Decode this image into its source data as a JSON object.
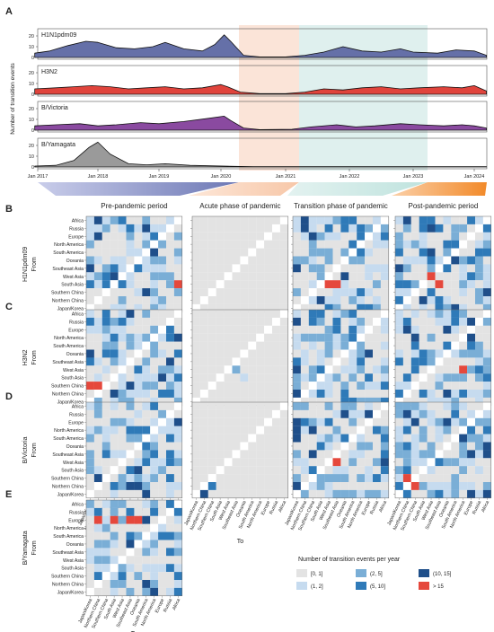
{
  "panel_letters": {
    "a": "A",
    "b": "B",
    "c": "C",
    "d": "D",
    "e": "E"
  },
  "panelA": {
    "ylabel": "Number of transition events",
    "x_ticks": [
      "Jan 2017",
      "Jan 2018",
      "Jan 2019",
      "Jan 2020",
      "Jan 2021",
      "Jan 2022",
      "Jan 2023",
      "Jan 2024"
    ],
    "y_ticks": [
      "0",
      "10",
      "20"
    ],
    "subtypes": [
      "H1N1pdm09",
      "H3N2",
      "B/Victoria",
      "B/Yamagata"
    ],
    "colors": {
      "H1N1pdm09": "#6570a8",
      "H3N2": "#e0443c",
      "B/Victoria": "#8a4aa0",
      "B/Yamagata": "#9a9a9a"
    },
    "periods": {
      "acute_color": "#fbe4d8",
      "transition_color": "#dff0ee"
    }
  },
  "period_titles": [
    "Pre-pandemic period",
    "Acute phase of pandemic",
    "Transition phase of pandemic",
    "Post-pandemic period"
  ],
  "row_subtypes": [
    "H1N1pdm09",
    "H3N2",
    "B/Victoria",
    "B/Yamagata"
  ],
  "from_label": "From",
  "to_label": "To",
  "regions": [
    "Africa",
    "Russia",
    "Europe",
    "North America",
    "South America",
    "Oceania",
    "Southeast Asia",
    "West Asia",
    "South Asia",
    "Southern China",
    "Northern China",
    "Japan/Korea"
  ],
  "legend": {
    "title": "Number of transition events per year",
    "items": [
      "[0, 1]",
      "(1, 2]",
      "(2, 5]",
      "(5, 10]",
      "(10, 15]",
      "> 15"
    ],
    "colors": [
      "#e3e3e3",
      "#c6dbef",
      "#7aaed6",
      "#2f7ab8",
      "#1f4f8a",
      "#e5483c"
    ]
  }
}
